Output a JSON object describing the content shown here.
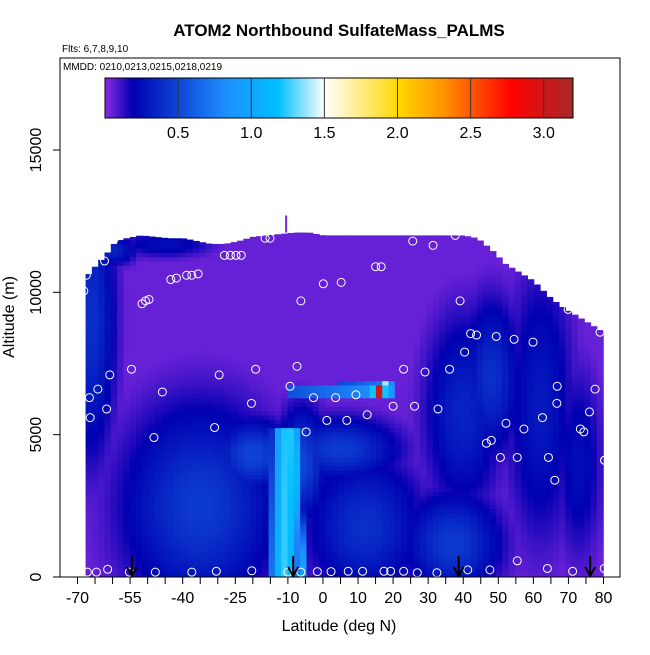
{
  "chart_data": {
    "type": "heatmap",
    "title": "ATOM2 Northbound SulfateMass_PALMS",
    "subtitle_flights": "Flts: 6,7,8,9,10",
    "subtitle_dates": "MMDD: 0210,0213,0215,0218,0219",
    "xlabel": "Latitude (deg N)",
    "ylabel": "Altitude (m)",
    "xlim": [
      -70,
      82
    ],
    "ylim": [
      0,
      17500
    ],
    "x_ticks": [
      -70,
      -55,
      -40,
      -25,
      -10,
      0,
      10,
      20,
      30,
      40,
      50,
      60,
      70,
      80
    ],
    "x_tick_labels": [
      "-70",
      "-55",
      "-40",
      "-25",
      "-10",
      "0",
      "10",
      "20",
      "30",
      "40",
      "50",
      "60",
      "70",
      "80"
    ],
    "x_minor_ticks": [
      -65,
      -60,
      -50,
      -45,
      -35,
      -30,
      -20,
      -15,
      -5,
      5,
      15,
      25,
      35,
      45,
      55,
      65,
      75
    ],
    "y_ticks": [
      0,
      5000,
      10000,
      15000
    ],
    "y_tick_labels": [
      "0",
      "5000",
      "10000",
      "15000"
    ],
    "colorbar": {
      "range": [
        0,
        3.2
      ],
      "ticks": [
        0.5,
        1.0,
        1.5,
        2.0,
        2.5,
        3.0
      ],
      "tick_labels": [
        "0.5",
        "1.0",
        "1.5",
        "2.0",
        "2.5",
        "3.0"
      ],
      "colors": [
        "#8a2be2",
        "#0000b0",
        "#1e90ff",
        "#00bfff",
        "#ffffff",
        "#ffd700",
        "#ff8c00",
        "#ff0000",
        "#a52a2a"
      ],
      "stops": [
        0,
        0.06,
        0.26,
        0.37,
        0.47,
        0.63,
        0.73,
        0.87,
        1.0
      ]
    },
    "background_value": 0.05,
    "coverage": {
      "lat": [
        -68.5,
        -65,
        -62,
        -59,
        -56,
        -52,
        -48,
        -44,
        -40,
        -36,
        -32,
        -28,
        -24,
        -20,
        -16,
        -12,
        -8,
        -4,
        0,
        4,
        8,
        12,
        16,
        20,
        24,
        28,
        32,
        36,
        40,
        44,
        48,
        52,
        56,
        60,
        64,
        68,
        72,
        76,
        80
      ],
      "top_altitude": [
        10400,
        10900,
        11300,
        11800,
        11900,
        12000,
        11950,
        11900,
        11900,
        11800,
        11700,
        11700,
        11800,
        11950,
        12000,
        12050,
        12100,
        12100,
        12000,
        12000,
        12000,
        12000,
        12000,
        12000,
        12000,
        12000,
        12000,
        12000,
        12000,
        11900,
        11500,
        11000,
        10700,
        10400,
        9900,
        9500,
        9200,
        8900,
        8600
      ]
    },
    "features": [
      {
        "kind": "blob",
        "lat": -66,
        "alt": 9000,
        "sx": 5,
        "sy": 3500,
        "value": 0.4
      },
      {
        "kind": "blob",
        "lat": -60,
        "alt": 11500,
        "sx": 5,
        "sy": 400,
        "value": 0.35
      },
      {
        "kind": "blob",
        "lat": -45,
        "alt": 11700,
        "sx": 10,
        "sy": 350,
        "value": 0.25
      },
      {
        "kind": "blob",
        "lat": -35,
        "alt": 2500,
        "sx": 16,
        "sy": 2600,
        "value": 0.45
      },
      {
        "kind": "blob",
        "lat": -20,
        "alt": 4300,
        "sx": 8,
        "sy": 900,
        "value": 0.5
      },
      {
        "kind": "blob",
        "lat": -6,
        "alt": 4000,
        "sx": 5,
        "sy": 1400,
        "value": 0.5
      },
      {
        "kind": "blob",
        "lat": 5,
        "alt": 4500,
        "sx": 12,
        "sy": 800,
        "value": 0.45
      },
      {
        "kind": "blob",
        "lat": 12,
        "alt": 1800,
        "sx": 12,
        "sy": 1800,
        "value": 0.4
      },
      {
        "kind": "blob",
        "lat": 37,
        "alt": 1200,
        "sx": 10,
        "sy": 1300,
        "value": 0.45
      },
      {
        "kind": "blob",
        "lat": 40,
        "alt": 5800,
        "sx": 8,
        "sy": 2500,
        "value": 0.35
      },
      {
        "kind": "blob",
        "lat": 48,
        "alt": 7000,
        "sx": 6,
        "sy": 2000,
        "value": 0.4
      },
      {
        "kind": "blob",
        "lat": 62,
        "alt": 6000,
        "sx": 7,
        "sy": 3500,
        "value": 0.3
      },
      {
        "kind": "blob",
        "lat": 73,
        "alt": 4000,
        "sx": 5,
        "sy": 2500,
        "value": 0.25
      },
      {
        "kind": "slant",
        "lat0": -11,
        "alt_lo": 0,
        "lat1": -10,
        "alt_hi": 5300,
        "half_width": 5.5,
        "value": 1.25
      },
      {
        "kind": "slant",
        "lat0": -6,
        "alt_lo": 0,
        "lat1": -8,
        "alt_hi": 5300,
        "half_width": 1.5,
        "value": 1.1
      },
      {
        "kind": "band",
        "lat_min": -10,
        "lat_max": 20,
        "alt_min": 6300,
        "alt_max": 6700,
        "value": 0.9,
        "plume_lat": 16,
        "plume_value": 3.0
      },
      {
        "kind": "band",
        "lat_min": 4,
        "lat_max": 20,
        "alt_min": 6700,
        "alt_max": 6900,
        "value": 0.8,
        "plume_lat": 18,
        "plume_value": 1.5
      }
    ],
    "profile_points": [
      {
        "lat": -68.2,
        "alt": 10050
      },
      {
        "lat": -67.5,
        "alt": 10600
      },
      {
        "lat": -66.6,
        "alt": 6300
      },
      {
        "lat": -66.4,
        "alt": 5600
      },
      {
        "lat": -64.2,
        "alt": 6600
      },
      {
        "lat": -61.7,
        "alt": 5900
      },
      {
        "lat": -60.8,
        "alt": 7100
      },
      {
        "lat": -62.3,
        "alt": 11100
      },
      {
        "lat": -59.4,
        "alt": 11900
      },
      {
        "lat": -54.6,
        "alt": 7300
      },
      {
        "lat": -51.6,
        "alt": 9600
      },
      {
        "lat": -50.6,
        "alt": 9700
      },
      {
        "lat": -49.6,
        "alt": 9750
      },
      {
        "lat": -48.2,
        "alt": 4900
      },
      {
        "lat": -45.8,
        "alt": 6500
      },
      {
        "lat": -43.4,
        "alt": 10450
      },
      {
        "lat": -41.8,
        "alt": 10500
      },
      {
        "lat": -38.9,
        "alt": 10600
      },
      {
        "lat": -37.4,
        "alt": 10600
      },
      {
        "lat": -35.6,
        "alt": 10650
      },
      {
        "lat": -30.9,
        "alt": 5250
      },
      {
        "lat": -29.6,
        "alt": 7100
      },
      {
        "lat": -28.1,
        "alt": 11300
      },
      {
        "lat": -26.4,
        "alt": 11300
      },
      {
        "lat": -24.8,
        "alt": 11300
      },
      {
        "lat": -23.3,
        "alt": 11300
      },
      {
        "lat": -20.4,
        "alt": 6100
      },
      {
        "lat": -19.2,
        "alt": 7300
      },
      {
        "lat": -16.5,
        "alt": 11900
      },
      {
        "lat": -15.1,
        "alt": 11900
      },
      {
        "lat": -9.4,
        "alt": 6700
      },
      {
        "lat": -7.4,
        "alt": 7400
      },
      {
        "lat": -6.3,
        "alt": 9700
      },
      {
        "lat": -4.8,
        "alt": 5100
      },
      {
        "lat": -2.7,
        "alt": 6300
      },
      {
        "lat": 0.1,
        "alt": 10300
      },
      {
        "lat": 1.1,
        "alt": 5500
      },
      {
        "lat": 3.6,
        "alt": 6300
      },
      {
        "lat": 6.8,
        "alt": 5500
      },
      {
        "lat": 5.2,
        "alt": 10350
      },
      {
        "lat": 9.4,
        "alt": 6400
      },
      {
        "lat": 12.6,
        "alt": 5700
      },
      {
        "lat": 15.0,
        "alt": 10900
      },
      {
        "lat": 16.6,
        "alt": 10900
      },
      {
        "lat": 20.0,
        "alt": 6000
      },
      {
        "lat": 23.0,
        "alt": 7300
      },
      {
        "lat": 25.6,
        "alt": 11800
      },
      {
        "lat": 26.1,
        "alt": 6000
      },
      {
        "lat": 29.1,
        "alt": 7200
      },
      {
        "lat": 31.4,
        "alt": 11650
      },
      {
        "lat": 32.8,
        "alt": 5900
      },
      {
        "lat": 36.1,
        "alt": 7300
      },
      {
        "lat": 37.7,
        "alt": 12000
      },
      {
        "lat": 39.1,
        "alt": 9700
      },
      {
        "lat": 40.4,
        "alt": 7900
      },
      {
        "lat": 42.1,
        "alt": 8550
      },
      {
        "lat": 43.8,
        "alt": 8500
      },
      {
        "lat": 46.6,
        "alt": 4700
      },
      {
        "lat": 48.0,
        "alt": 4800
      },
      {
        "lat": 49.4,
        "alt": 8450
      },
      {
        "lat": 50.6,
        "alt": 4200
      },
      {
        "lat": 52.2,
        "alt": 5400
      },
      {
        "lat": 54.5,
        "alt": 8350
      },
      {
        "lat": 55.4,
        "alt": 4200
      },
      {
        "lat": 57.3,
        "alt": 5200
      },
      {
        "lat": 59.9,
        "alt": 8250
      },
      {
        "lat": 62.6,
        "alt": 5600
      },
      {
        "lat": 64.3,
        "alt": 4200
      },
      {
        "lat": 66.1,
        "alt": 3400
      },
      {
        "lat": 66.8,
        "alt": 6700
      },
      {
        "lat": 66.7,
        "alt": 6100
      },
      {
        "lat": 69.9,
        "alt": 9400
      },
      {
        "lat": 73.4,
        "alt": 5200
      },
      {
        "lat": 74.4,
        "alt": 5100
      },
      {
        "lat": 75.4,
        "alt": 9300
      },
      {
        "lat": 76.0,
        "alt": 5800
      },
      {
        "lat": 77.6,
        "alt": 6600
      },
      {
        "lat": 79.0,
        "alt": 8600
      },
      {
        "lat": 80.3,
        "alt": 4100
      },
      {
        "lat": 80.2,
        "alt": 300
      },
      {
        "lat": -67.2,
        "alt": 170
      },
      {
        "lat": -64.6,
        "alt": 170
      },
      {
        "lat": -61.4,
        "alt": 270
      },
      {
        "lat": -55.2,
        "alt": 170
      },
      {
        "lat": -47.8,
        "alt": 170
      },
      {
        "lat": -37.4,
        "alt": 170
      },
      {
        "lat": -30.4,
        "alt": 200
      },
      {
        "lat": -20.3,
        "alt": 220
      },
      {
        "lat": -10.0,
        "alt": 170
      },
      {
        "lat": -6.3,
        "alt": 170
      },
      {
        "lat": -1.6,
        "alt": 190
      },
      {
        "lat": 2.3,
        "alt": 190
      },
      {
        "lat": 7.2,
        "alt": 200
      },
      {
        "lat": 11.3,
        "alt": 200
      },
      {
        "lat": 17.4,
        "alt": 200
      },
      {
        "lat": 19.3,
        "alt": 200
      },
      {
        "lat": 23.0,
        "alt": 200
      },
      {
        "lat": 26.9,
        "alt": 150
      },
      {
        "lat": 32.5,
        "alt": 150
      },
      {
        "lat": 41.3,
        "alt": 250
      },
      {
        "lat": 47.6,
        "alt": 250
      },
      {
        "lat": 55.4,
        "alt": 570
      },
      {
        "lat": 64.0,
        "alt": 300
      },
      {
        "lat": 71.2,
        "alt": 200
      },
      {
        "lat": 80.3,
        "alt": 4100
      }
    ],
    "arrows_at_latitude": [
      -54.5,
      -8.5,
      38.7,
      76.2
    ],
    "sensor_tick_latitude": -10.5
  }
}
